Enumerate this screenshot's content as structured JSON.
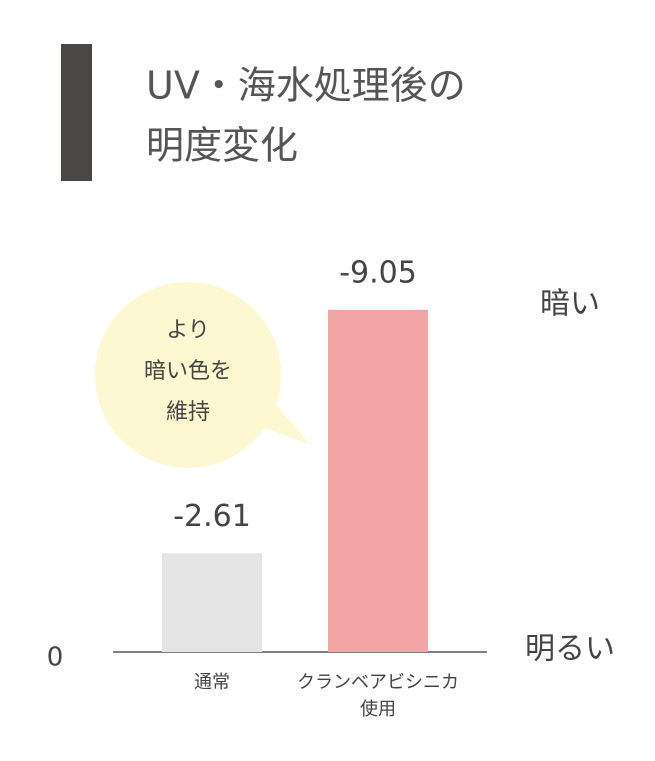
{
  "chart_data": {
    "type": "bar",
    "title": [
      "UV・海水処理後の",
      "明度変化"
    ],
    "categories": [
      [
        "通常"
      ],
      [
        "クランベアビシニカ",
        "使用"
      ]
    ],
    "values": [
      -2.61,
      -9.05
    ],
    "colors": [
      "#e4e4e4",
      "#f2a5a5"
    ],
    "ylim": [
      0,
      -10
    ],
    "yticks": [
      0
    ],
    "y_axis_top_label": "暗い",
    "y_axis_bottom_label": "明るい",
    "annotation": [
      "より",
      "暗い色を",
      "維持"
    ]
  }
}
